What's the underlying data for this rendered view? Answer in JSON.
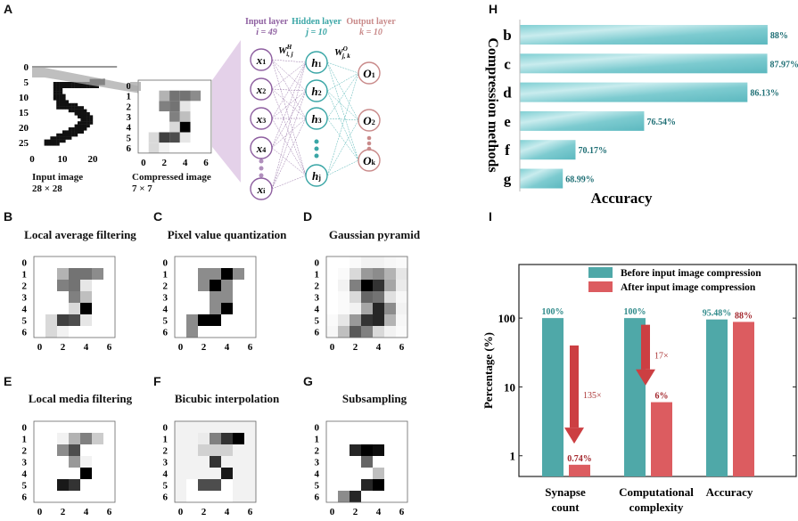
{
  "panels": {
    "A": {
      "label": "A",
      "input_caption": "Input image",
      "input_size": "28 × 28",
      "compressed_caption": "Compressed image",
      "compressed_size": "7 × 7",
      "input_yticks": [
        "0",
        "5",
        "10",
        "15",
        "20",
        "25"
      ],
      "input_xticks": [
        "0",
        "10",
        "20"
      ],
      "grid_ticks": [
        "0",
        "1",
        "2",
        "3",
        "4",
        "5",
        "6"
      ],
      "grid_xticks": [
        "0",
        "2",
        "4",
        "6"
      ],
      "compressed_grid": [
        [
          0.0,
          0.0,
          0.0,
          0.0,
          0.0,
          0.0,
          0.0
        ],
        [
          0.0,
          0.0,
          0.3,
          0.55,
          0.55,
          0.45,
          0.0
        ],
        [
          0.0,
          0.0,
          0.5,
          0.55,
          0.1,
          0.0,
          0.0
        ],
        [
          0.0,
          0.0,
          0.0,
          0.5,
          0.25,
          0.0,
          0.0
        ],
        [
          0.0,
          0.0,
          0.0,
          0.15,
          1.0,
          0.0,
          0.0
        ],
        [
          0.0,
          0.15,
          0.75,
          0.7,
          0.1,
          0.0,
          0.0
        ],
        [
          0.0,
          0.15,
          0.05,
          0.0,
          0.0,
          0.0,
          0.0
        ]
      ],
      "network": {
        "input_layer": "Input layer",
        "input_count": "i = 49",
        "hidden_layer": "Hidden layer",
        "hidden_count": "j = 10",
        "output_layer": "Output layer",
        "output_count": "k = 10",
        "weight_hidden": "W",
        "weight_hidden_sup": "H",
        "weight_hidden_sub": "i, j",
        "weight_output": "W",
        "weight_output_sup": "O",
        "weight_output_sub": "j, k",
        "input_nodes": [
          "x1",
          "x2",
          "x3",
          "x4",
          "xi"
        ],
        "hidden_nodes": [
          "h1",
          "h2",
          "h3",
          "hj"
        ],
        "output_nodes": [
          "O1",
          "O2",
          "Ok"
        ],
        "colors": {
          "input": "#8e5fa0",
          "hidden": "#3aa6a6",
          "output": "#c98a8a"
        }
      }
    },
    "B": {
      "label": "B",
      "title": "Local average filtering",
      "grid": [
        [
          0,
          0,
          0,
          0,
          0,
          0,
          0
        ],
        [
          0,
          0,
          0.3,
          0.55,
          0.55,
          0.45,
          0
        ],
        [
          0,
          0,
          0.5,
          0.55,
          0.1,
          0,
          0
        ],
        [
          0,
          0,
          0,
          0.5,
          0.25,
          0,
          0
        ],
        [
          0,
          0,
          0,
          0.15,
          1.0,
          0,
          0
        ],
        [
          0,
          0.15,
          0.75,
          0.7,
          0.1,
          0,
          0
        ],
        [
          0,
          0.15,
          0.05,
          0,
          0,
          0,
          0
        ]
      ]
    },
    "C": {
      "label": "C",
      "title": "Pixel value quantization",
      "grid": [
        [
          0,
          0,
          0,
          0,
          0,
          0,
          0
        ],
        [
          0,
          0,
          0.45,
          0.45,
          1.0,
          0.45,
          0
        ],
        [
          0,
          0,
          0.45,
          1.0,
          0.45,
          0,
          0
        ],
        [
          0,
          0,
          0,
          0.45,
          0.45,
          0,
          0
        ],
        [
          0,
          0,
          0,
          0.45,
          1.0,
          0,
          0
        ],
        [
          0,
          0.45,
          1.0,
          1.0,
          0,
          0,
          0
        ],
        [
          0,
          0.45,
          0,
          0,
          0,
          0,
          0
        ]
      ]
    },
    "D": {
      "label": "D",
      "title": "Gaussian pyramid",
      "grid": [
        [
          0,
          0,
          0.02,
          0.05,
          0.05,
          0.03,
          0.02
        ],
        [
          0,
          0.02,
          0.15,
          0.4,
          0.45,
          0.3,
          0.1
        ],
        [
          0,
          0.05,
          0.5,
          1.0,
          0.8,
          0.35,
          0.08
        ],
        [
          0,
          0.02,
          0.15,
          0.6,
          0.55,
          0.12,
          0.03
        ],
        [
          0,
          0.02,
          0.05,
          0.35,
          0.85,
          0.45,
          0.05
        ],
        [
          0.02,
          0.1,
          0.4,
          0.8,
          0.85,
          0.3,
          0.03
        ],
        [
          0.03,
          0.25,
          0.65,
          0.5,
          0.15,
          0.05,
          0.02
        ]
      ]
    },
    "E": {
      "label": "E",
      "title": "Local media filtering",
      "grid": [
        [
          0,
          0,
          0,
          0,
          0,
          0,
          0
        ],
        [
          0,
          0,
          0.05,
          0.3,
          0.5,
          0.2,
          0
        ],
        [
          0,
          0,
          0.45,
          0.7,
          0,
          0,
          0
        ],
        [
          0,
          0,
          0,
          0.4,
          0.05,
          0,
          0
        ],
        [
          0,
          0,
          0,
          0,
          1.0,
          0,
          0
        ],
        [
          0,
          0,
          0.9,
          0.8,
          0,
          0,
          0
        ],
        [
          0,
          0,
          0,
          0,
          0,
          0,
          0
        ]
      ]
    },
    "F": {
      "label": "F",
      "title": "Bicubic interpolation",
      "grid": [
        [
          0.05,
          0.05,
          0.05,
          0.05,
          0.05,
          0.05,
          0.05
        ],
        [
          0.05,
          0.05,
          0.08,
          0.5,
          0.8,
          1.0,
          0.05
        ],
        [
          0.05,
          0.05,
          0.18,
          0.18,
          0.18,
          0.05,
          0.05
        ],
        [
          0.05,
          0.05,
          0.05,
          0.8,
          0.05,
          0.05,
          0.05
        ],
        [
          0.05,
          0.05,
          0.05,
          0.05,
          0.9,
          0.05,
          0.05
        ],
        [
          0.05,
          0.0,
          0.7,
          0.7,
          0.0,
          0.05,
          0.05
        ],
        [
          0.05,
          0.0,
          0.0,
          0.0,
          0.0,
          0.05,
          0.05
        ]
      ]
    },
    "G": {
      "label": "G",
      "title": "Subsampling",
      "grid": [
        [
          0,
          0,
          0,
          0,
          0,
          0,
          0
        ],
        [
          0,
          0,
          0,
          0,
          0,
          0,
          0
        ],
        [
          0,
          0,
          0.85,
          1.0,
          0.95,
          0,
          0
        ],
        [
          0,
          0,
          0,
          0.6,
          0,
          0,
          0
        ],
        [
          0,
          0,
          0,
          0,
          0.25,
          0,
          0
        ],
        [
          0,
          0,
          0,
          0.85,
          1.0,
          0,
          0
        ],
        [
          0,
          0.45,
          0.85,
          0,
          0,
          0,
          0
        ]
      ]
    },
    "tick_labels": {
      "y": [
        "0",
        "1",
        "2",
        "3",
        "4",
        "5",
        "6"
      ],
      "x": [
        "0",
        "2",
        "4",
        "6"
      ]
    }
  },
  "chart_data": [
    {
      "id": "H",
      "type": "bar",
      "orientation": "horizontal",
      "title": "",
      "panel_label": "H",
      "xlabel": "Accuracy",
      "ylabel": "Compression methods",
      "categories": [
        "b",
        "c",
        "d",
        "e",
        "f",
        "g"
      ],
      "values": [
        88,
        87.97,
        86.13,
        76.54,
        70.17,
        68.99
      ],
      "data_labels": [
        "88%",
        "87.97%",
        "86.13%",
        "76.54%",
        "70.17%",
        "68.99%"
      ],
      "xlim": [
        65,
        89
      ],
      "bar_color": "#5bbfc6",
      "label_color": "#1f6f75",
      "grid": false
    },
    {
      "id": "I",
      "type": "bar",
      "panel_label": "I",
      "title": "",
      "xlabel": "",
      "ylabel": "Percentage (%)",
      "yscale": "log",
      "ylim": [
        0.5,
        600
      ],
      "yticks": [
        "1",
        "10",
        "100"
      ],
      "categories": [
        "Synapse count",
        "Computational complexity",
        "Accuracy"
      ],
      "category_lines": [
        [
          "Synapse",
          "count"
        ],
        [
          "Computational",
          "complexity"
        ],
        [
          "Accuracy"
        ]
      ],
      "series": [
        {
          "name": "Before input image compression",
          "color": "#4fa8a8",
          "values": [
            100,
            100,
            95.48
          ],
          "labels": [
            "100%",
            "100%",
            "95.48%"
          ],
          "label_color": "#2f8a8a"
        },
        {
          "name": "After input image compression",
          "color": "#dc5c60",
          "values": [
            0.74,
            6,
            88
          ],
          "labels": [
            "0.74%",
            "6%",
            "88%"
          ],
          "label_color": "#a3262c"
        }
      ],
      "annotations": [
        {
          "text": "135×",
          "category": "Synapse count",
          "from": 40,
          "to": 1.5
        },
        {
          "text": "17×",
          "category": "Computational complexity",
          "from": 80,
          "to": 10.5
        }
      ],
      "legend": "top-right",
      "arrow_color": "#cc3f42",
      "grid": false
    }
  ]
}
